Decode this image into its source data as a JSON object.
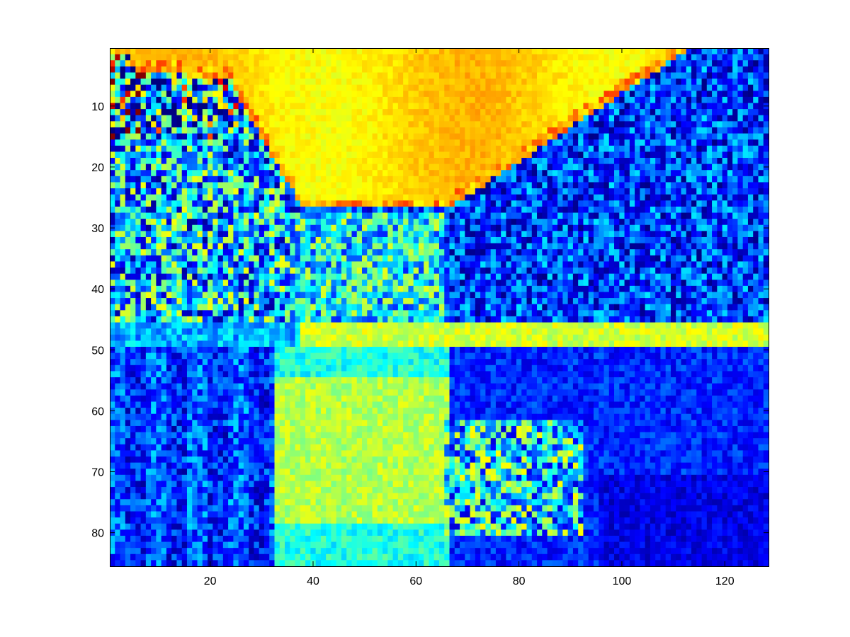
{
  "chart_data": {
    "type": "heatmap",
    "title": "",
    "xlabel": "",
    "ylabel": "",
    "xlim": [
      0.5,
      128.5
    ],
    "ylim": [
      0.5,
      85.5
    ],
    "y_reversed": true,
    "grid": false,
    "legend": "none",
    "colormap": "jet",
    "clim": [
      0,
      1
    ],
    "image_size": {
      "columns": 128,
      "rows": 85
    },
    "x_ticks": [
      20,
      40,
      60,
      80,
      100,
      120
    ],
    "y_ticks": [
      10,
      20,
      30,
      40,
      50,
      60,
      70,
      80
    ],
    "scene_regions": [
      {
        "name": "sky",
        "rows": [
          1,
          27
        ],
        "level": 0.64
      },
      {
        "name": "left-forest",
        "rows": [
          1,
          55
        ],
        "cols": [
          1,
          38
        ],
        "level": 0.3
      },
      {
        "name": "right-forest",
        "rows": [
          1,
          50
        ],
        "cols": [
          62,
          128
        ],
        "level": 0.18
      },
      {
        "name": "far-shore-band",
        "rows": [
          46,
          49
        ],
        "cols": [
          38,
          128
        ],
        "level": 0.58
      },
      {
        "name": "water-bright",
        "rows": [
          55,
          78
        ],
        "cols": [
          33,
          66
        ],
        "level": 0.55
      },
      {
        "name": "water-dark",
        "rows": [
          50,
          85
        ],
        "level": 0.16
      },
      {
        "name": "boathouse",
        "rows": [
          62,
          80
        ],
        "cols": [
          66,
          92
        ],
        "level": 0.38
      }
    ],
    "colors": {
      "axes_border": "#000000",
      "background": "#ffffff",
      "jet_low": "#00008f",
      "jet_high": "#800000"
    }
  }
}
